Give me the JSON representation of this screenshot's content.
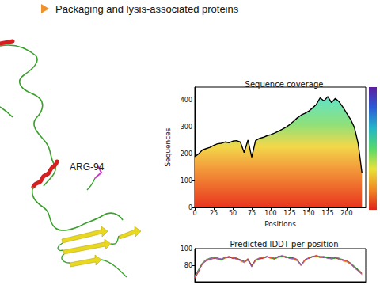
{
  "slide": {
    "header": "Packaging and lysis-associated proteins",
    "structure_label": "ARG-94"
  },
  "chart_data": [
    {
      "type": "line",
      "title": "Sequence coverage",
      "x_label": "Positions",
      "y_label": "Sequences",
      "x": [
        0,
        5,
        10,
        15,
        20,
        25,
        30,
        35,
        40,
        45,
        50,
        55,
        60,
        65,
        70,
        75,
        80,
        85,
        90,
        95,
        100,
        105,
        110,
        115,
        120,
        125,
        130,
        135,
        140,
        145,
        150,
        155,
        160,
        165,
        170,
        175,
        180,
        185,
        190,
        195,
        200,
        205,
        210,
        215,
        220
      ],
      "values": [
        190,
        200,
        215,
        220,
        225,
        232,
        238,
        240,
        245,
        242,
        248,
        250,
        245,
        205,
        252,
        188,
        250,
        258,
        262,
        268,
        272,
        278,
        285,
        292,
        300,
        310,
        322,
        335,
        345,
        352,
        360,
        372,
        385,
        410,
        398,
        415,
        392,
        408,
        395,
        375,
        352,
        330,
        300,
        240,
        130
      ],
      "color": "#000000",
      "xlim": [
        0,
        225
      ],
      "xticks": [
        0,
        25,
        50,
        75,
        100,
        125,
        150,
        175,
        200
      ],
      "ylim": [
        0,
        450
      ],
      "yticks": [
        0,
        100,
        200,
        300,
        400
      ],
      "grid": false
    },
    {
      "type": "line",
      "title": "Predicted lDDT per position",
      "x": [
        0,
        5,
        10,
        15,
        20,
        25,
        30,
        35,
        40,
        45,
        50,
        55,
        60,
        65,
        70,
        75,
        80,
        85,
        90,
        95,
        100,
        105,
        110,
        115,
        120,
        125,
        130,
        135,
        140,
        145,
        150,
        155,
        160,
        165,
        170,
        175,
        180,
        185,
        190,
        195,
        200,
        205,
        210,
        215,
        220
      ],
      "series": [
        {
          "color": "#1f77b4",
          "values": [
            66,
            74,
            82,
            86,
            88,
            89,
            88,
            87,
            89,
            90,
            89,
            88,
            86,
            84,
            87,
            79,
            86,
            88,
            89,
            90,
            89,
            88,
            90,
            91,
            90,
            89,
            88,
            86,
            80,
            86,
            89,
            90,
            91,
            90,
            90,
            89,
            88,
            89,
            88,
            86,
            85,
            82,
            78,
            74,
            70
          ]
        },
        {
          "color": "#ff7f0e",
          "values": [
            65,
            73,
            81,
            86,
            89,
            89,
            87,
            87,
            88,
            90,
            90,
            88,
            85,
            83,
            86,
            78,
            85,
            88,
            90,
            90,
            88,
            88,
            89,
            91,
            91,
            88,
            87,
            85,
            79,
            85,
            90,
            90,
            90,
            90,
            91,
            89,
            87,
            89,
            89,
            85,
            84,
            81,
            77,
            73,
            69
          ]
        },
        {
          "color": "#2ca02c",
          "values": [
            67,
            75,
            83,
            87,
            88,
            90,
            88,
            86,
            89,
            89,
            89,
            89,
            86,
            85,
            87,
            80,
            86,
            87,
            89,
            91,
            89,
            87,
            90,
            90,
            90,
            90,
            88,
            86,
            81,
            86,
            89,
            91,
            91,
            89,
            90,
            90,
            88,
            88,
            88,
            87,
            85,
            83,
            79,
            75,
            71
          ]
        },
        {
          "color": "#d62728",
          "values": [
            64,
            72,
            82,
            85,
            87,
            88,
            89,
            87,
            90,
            90,
            88,
            88,
            87,
            84,
            88,
            79,
            87,
            88,
            88,
            90,
            90,
            88,
            91,
            91,
            89,
            89,
            89,
            87,
            80,
            87,
            88,
            90,
            92,
            90,
            89,
            89,
            89,
            89,
            87,
            86,
            86,
            82,
            78,
            74,
            70
          ]
        },
        {
          "color": "#9467bd",
          "values": [
            66,
            74,
            81,
            86,
            88,
            89,
            88,
            88,
            89,
            91,
            89,
            87,
            86,
            84,
            86,
            78,
            86,
            89,
            89,
            90,
            89,
            89,
            90,
            92,
            90,
            88,
            88,
            86,
            80,
            86,
            89,
            90,
            91,
            91,
            90,
            88,
            88,
            90,
            88,
            86,
            85,
            82,
            77,
            73,
            69
          ]
        }
      ],
      "xlim": [
        0,
        225
      ],
      "ylim": [
        60,
        100
      ],
      "yticks": [
        80,
        100
      ],
      "grid": false,
      "tick_labels": "y"
    }
  ]
}
